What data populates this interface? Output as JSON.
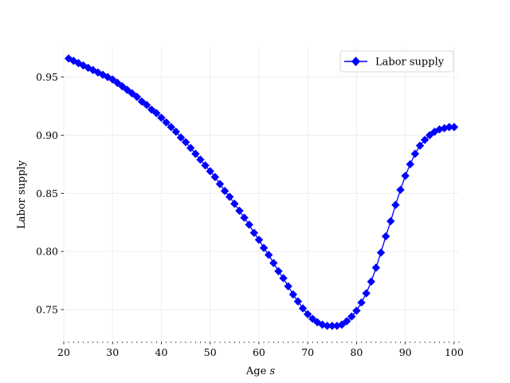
{
  "chart_data": {
    "type": "line",
    "title": "",
    "xlabel": "Age",
    "xlabel_var": "s",
    "ylabel": "Labor supply",
    "xlim": [
      20,
      101
    ],
    "ylim": [
      0.7225,
      0.9765
    ],
    "xticks": [
      20,
      30,
      40,
      50,
      60,
      70,
      80,
      90,
      100
    ],
    "yticks": [
      0.75,
      0.8,
      0.85,
      0.9,
      0.95
    ],
    "xtick_labels": [
      "20",
      "30",
      "40",
      "50",
      "60",
      "70",
      "80",
      "90",
      "100"
    ],
    "ytick_labels": [
      "0.75",
      "0.80",
      "0.85",
      "0.90",
      "0.95"
    ],
    "grid": true,
    "legend": {
      "position": "top-right",
      "entries": [
        "Labor supply"
      ]
    },
    "colors": {
      "series": "#0000ff"
    },
    "series": [
      {
        "name": "Labor supply",
        "marker": "diamond",
        "x": [
          21,
          22,
          23,
          24,
          25,
          26,
          27,
          28,
          29,
          30,
          31,
          32,
          33,
          34,
          35,
          36,
          37,
          38,
          39,
          40,
          41,
          42,
          43,
          44,
          45,
          46,
          47,
          48,
          49,
          50,
          51,
          52,
          53,
          54,
          55,
          56,
          57,
          58,
          59,
          60,
          61,
          62,
          63,
          64,
          65,
          66,
          67,
          68,
          69,
          70,
          71,
          72,
          73,
          74,
          75,
          76,
          77,
          78,
          79,
          80,
          81,
          82,
          83,
          84,
          85,
          86,
          87,
          88,
          89,
          90,
          91,
          92,
          93,
          94,
          95,
          96,
          97,
          98,
          99,
          100
        ],
        "values": [
          0.966,
          0.964,
          0.962,
          0.96,
          0.958,
          0.956,
          0.954,
          0.952,
          0.95,
          0.948,
          0.945,
          0.942,
          0.939,
          0.936,
          0.933,
          0.929,
          0.926,
          0.922,
          0.919,
          0.915,
          0.911,
          0.907,
          0.903,
          0.898,
          0.894,
          0.889,
          0.884,
          0.879,
          0.874,
          0.869,
          0.864,
          0.858,
          0.852,
          0.847,
          0.841,
          0.835,
          0.829,
          0.823,
          0.816,
          0.81,
          0.803,
          0.797,
          0.79,
          0.783,
          0.777,
          0.77,
          0.763,
          0.757,
          0.751,
          0.746,
          0.742,
          0.739,
          0.737,
          0.736,
          0.736,
          0.736,
          0.737,
          0.74,
          0.744,
          0.749,
          0.756,
          0.764,
          0.774,
          0.786,
          0.799,
          0.813,
          0.826,
          0.84,
          0.853,
          0.865,
          0.875,
          0.884,
          0.891,
          0.896,
          0.9,
          0.903,
          0.905,
          0.906,
          0.907,
          0.907
        ]
      }
    ]
  }
}
